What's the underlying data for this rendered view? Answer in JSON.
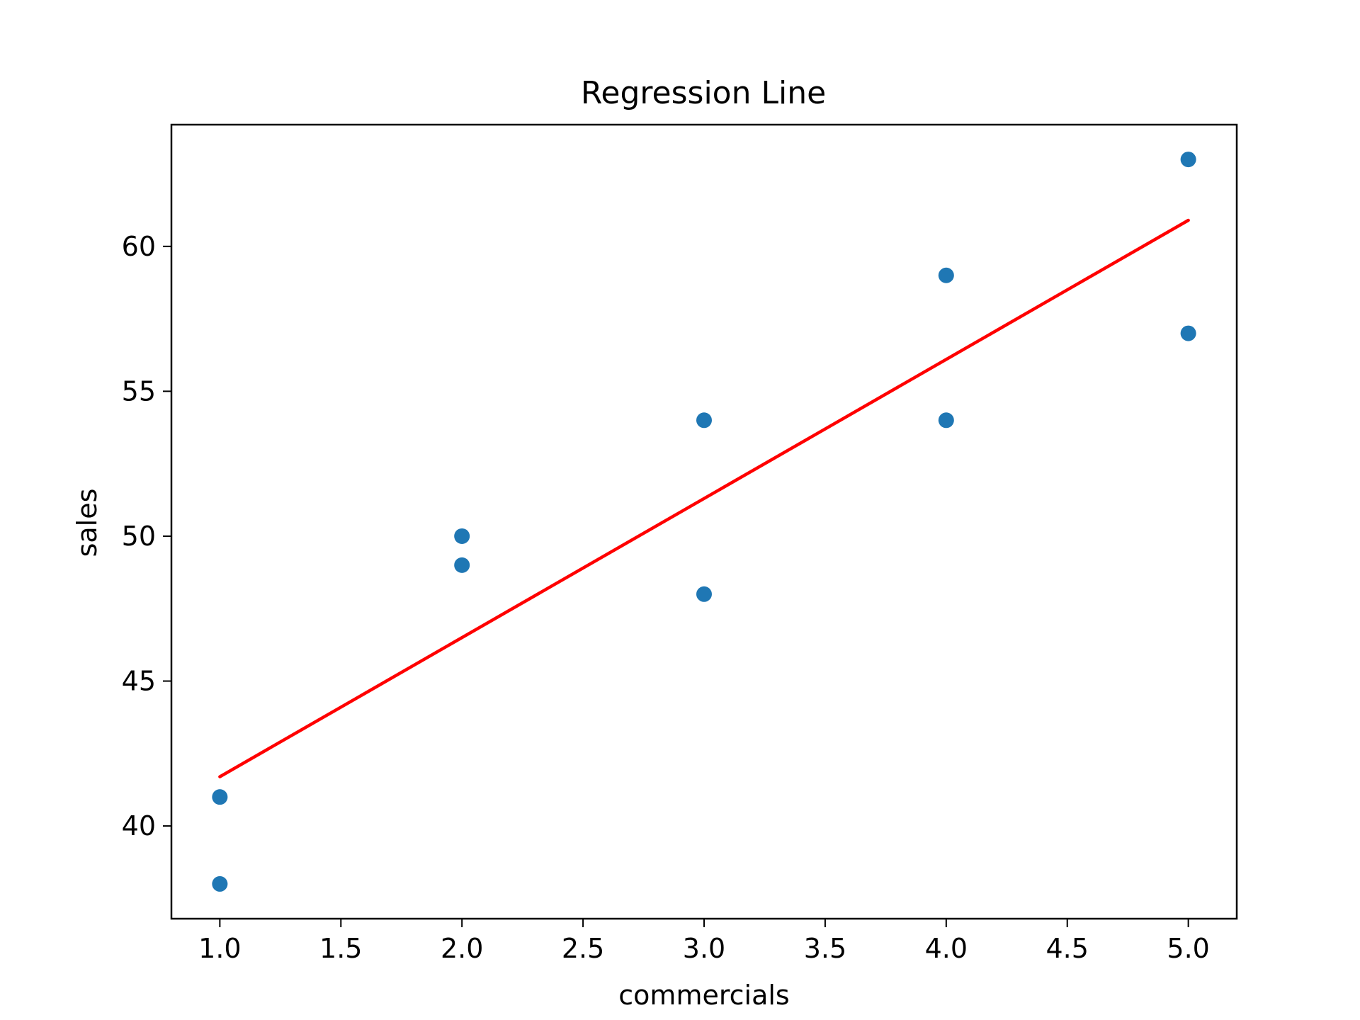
{
  "chart_data": {
    "type": "scatter",
    "title": "Regression Line",
    "xlabel": "commercials",
    "ylabel": "sales",
    "xlim": [
      0.8,
      5.2
    ],
    "ylim": [
      36.8,
      64.2
    ],
    "xticks": [
      1.0,
      1.5,
      2.0,
      2.5,
      3.0,
      3.5,
      4.0,
      4.5,
      5.0
    ],
    "xtick_labels": [
      "1.0",
      "1.5",
      "2.0",
      "2.5",
      "3.0",
      "3.5",
      "4.0",
      "4.5",
      "5.0"
    ],
    "yticks": [
      40,
      45,
      50,
      55,
      60
    ],
    "ytick_labels": [
      "40",
      "45",
      "50",
      "55",
      "60"
    ],
    "grid": false,
    "series": [
      {
        "type": "scatter",
        "color": "#1f77b4",
        "points": [
          {
            "x": 1,
            "y": 41
          },
          {
            "x": 1,
            "y": 38
          },
          {
            "x": 2,
            "y": 50
          },
          {
            "x": 2,
            "y": 49
          },
          {
            "x": 3,
            "y": 54
          },
          {
            "x": 3,
            "y": 48
          },
          {
            "x": 4,
            "y": 59
          },
          {
            "x": 4,
            "y": 54
          },
          {
            "x": 5,
            "y": 63
          },
          {
            "x": 5,
            "y": 57
          }
        ]
      },
      {
        "type": "line",
        "color": "#ff0000",
        "points": [
          {
            "x": 1,
            "y": 41.7
          },
          {
            "x": 5,
            "y": 60.9
          }
        ]
      }
    ]
  }
}
